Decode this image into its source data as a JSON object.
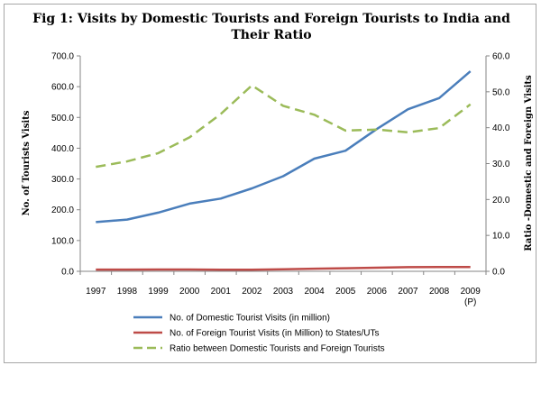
{
  "chart_data": {
    "type": "line",
    "title_lines": [
      "Fig 1: Visits by Domestic Tourists and Foreign Tourists to India and",
      "Their Ratio"
    ],
    "x": [
      "1997",
      "1998",
      "1999",
      "2000",
      "2001",
      "2002",
      "2003",
      "2004",
      "2005",
      "2006",
      "2007",
      "2008",
      "2009"
    ],
    "x_sublabels": [
      "",
      "",
      "",
      "",
      "",
      "",
      "",
      "",
      "",
      "",
      "",
      "",
      "(P)"
    ],
    "ylabel": "No. of Tourists Visits",
    "y2label": "Ratio -Domestic and Foreign Visits",
    "ylim": [
      0,
      700
    ],
    "y2lim": [
      0,
      60
    ],
    "yticks": [
      "0.0",
      "100.0",
      "200.0",
      "300.0",
      "400.0",
      "500.0",
      "600.0",
      "700.0"
    ],
    "y2ticks": [
      "0.0",
      "10.0",
      "20.0",
      "30.0",
      "40.0",
      "50.0",
      "60.0"
    ],
    "grid": false,
    "legend_position": "bottom",
    "series": [
      {
        "name": "No. of Domestic Tourist Visits (in million)",
        "axis": "left",
        "style": "solid",
        "color": "#4a7ebb",
        "values": [
          159.9,
          168.2,
          190.7,
          220.1,
          236.5,
          269.6,
          309.0,
          366.2,
          392.0,
          462.3,
          526.7,
          563.0,
          650.0
        ]
      },
      {
        "name": "No. of Foreign Tourist Visits (in Million) to States/UTs",
        "axis": "left",
        "style": "solid",
        "color": "#be4b48",
        "values": [
          5.5,
          5.5,
          5.8,
          5.9,
          5.4,
          5.2,
          6.7,
          8.4,
          10.0,
          11.7,
          13.6,
          14.1,
          14.0
        ]
      },
      {
        "name": "Ratio between Domestic Tourists and Foreign Tourists",
        "axis": "right",
        "style": "dashed",
        "color": "#9bbb59",
        "values": [
          29.1,
          30.6,
          32.9,
          37.3,
          43.8,
          51.8,
          46.1,
          43.6,
          39.2,
          39.5,
          38.7,
          39.9,
          46.5
        ]
      }
    ]
  }
}
